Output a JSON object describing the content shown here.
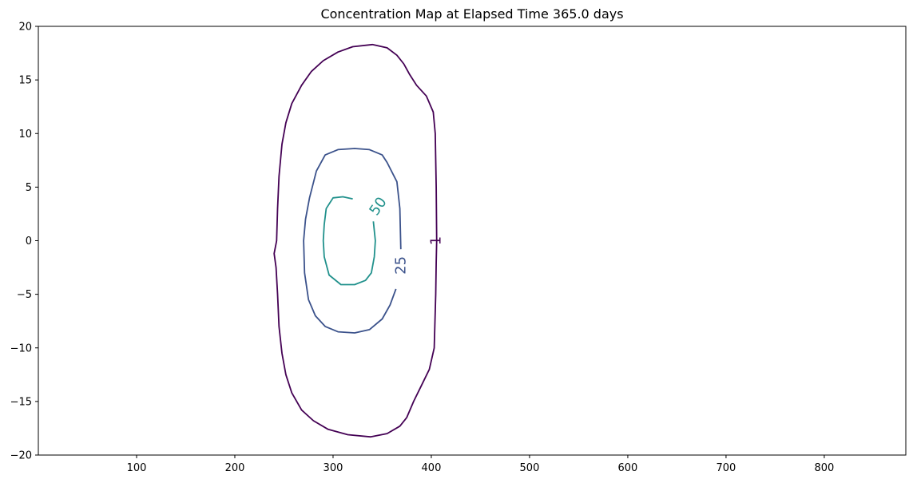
{
  "chart_data": {
    "type": "contour",
    "title": "Concentration Map at Elapsed Time 365.0 days",
    "xlabel": "",
    "ylabel": "",
    "xlim": [
      0,
      883
    ],
    "ylim": [
      -20,
      20
    ],
    "x_ticks": [
      100,
      200,
      300,
      400,
      500,
      600,
      700,
      800
    ],
    "y_ticks": [
      -20,
      -15,
      -10,
      -5,
      0,
      5,
      10,
      15,
      20
    ],
    "grid": false,
    "levels": [
      {
        "level": "1",
        "color": "#440154",
        "label_at": [
          405,
          0
        ],
        "label_rotation": -90,
        "points": [
          [
            405.5,
            0
          ],
          [
            405,
            5
          ],
          [
            404,
            10
          ],
          [
            402,
            12
          ],
          [
            395,
            13.5
          ],
          [
            385,
            14.5
          ],
          [
            378,
            15.5
          ],
          [
            372,
            16.5
          ],
          [
            365,
            17.3
          ],
          [
            355,
            18.0
          ],
          [
            340,
            18.3
          ],
          [
            320,
            18.1
          ],
          [
            305,
            17.6
          ],
          [
            290,
            16.8
          ],
          [
            278,
            15.8
          ],
          [
            268,
            14.5
          ],
          [
            258,
            12.8
          ],
          [
            252,
            11.0
          ],
          [
            248,
            9.0
          ],
          [
            245,
            6.0
          ],
          [
            243.5,
            3.0
          ],
          [
            242.5,
            0
          ],
          [
            240,
            -1.2
          ],
          [
            242,
            -2.5
          ],
          [
            243.5,
            -5.0
          ],
          [
            245,
            -8.0
          ],
          [
            248,
            -10.5
          ],
          [
            252,
            -12.5
          ],
          [
            258,
            -14.2
          ],
          [
            268,
            -15.8
          ],
          [
            280,
            -16.8
          ],
          [
            295,
            -17.6
          ],
          [
            315,
            -18.1
          ],
          [
            338,
            -18.3
          ],
          [
            355,
            -18.0
          ],
          [
            368,
            -17.3
          ],
          [
            375,
            -16.5
          ],
          [
            382,
            -15.0
          ],
          [
            390,
            -13.5
          ],
          [
            398,
            -12.0
          ],
          [
            403,
            -10.0
          ],
          [
            404.5,
            -5.0
          ],
          [
            405,
            -2.0
          ],
          [
            405.5,
            0
          ]
        ]
      },
      {
        "level": "25",
        "color": "#3b528b",
        "label_at": [
          369,
          -2.3
        ],
        "label_rotation": -90,
        "points": [
          [
            369,
            -0.8
          ],
          [
            368,
            3.0
          ],
          [
            365,
            5.5
          ],
          [
            355,
            7.3
          ],
          [
            350,
            8.0
          ],
          [
            337,
            8.5
          ],
          [
            322,
            8.6
          ],
          [
            305,
            8.5
          ],
          [
            292,
            8.0
          ],
          [
            283,
            6.5
          ],
          [
            276,
            4.0
          ],
          [
            272,
            2.0
          ],
          [
            270,
            0
          ],
          [
            271,
            -3.0
          ],
          [
            275,
            -5.5
          ],
          [
            282,
            -7.0
          ],
          [
            292,
            -8.0
          ],
          [
            305,
            -8.5
          ],
          [
            322,
            -8.6
          ],
          [
            337,
            -8.3
          ],
          [
            350,
            -7.3
          ],
          [
            358,
            -6.0
          ],
          [
            364,
            -4.5
          ]
        ]
      },
      {
        "level": "50",
        "color": "#21918c",
        "label_at": [
          346,
          3.2
        ],
        "label_rotation": -55,
        "points": [
          [
            341,
            1.8
          ],
          [
            343,
            0
          ],
          [
            342,
            -1.5
          ],
          [
            339,
            -3.0
          ],
          [
            333,
            -3.7
          ],
          [
            322,
            -4.1
          ],
          [
            308,
            -4.1
          ],
          [
            296,
            -3.2
          ],
          [
            291,
            -1.5
          ],
          [
            290,
            0
          ],
          [
            291,
            1.5
          ],
          [
            293,
            3.0
          ],
          [
            300,
            4.0
          ],
          [
            310,
            4.1
          ],
          [
            320,
            3.9
          ]
        ]
      }
    ]
  }
}
